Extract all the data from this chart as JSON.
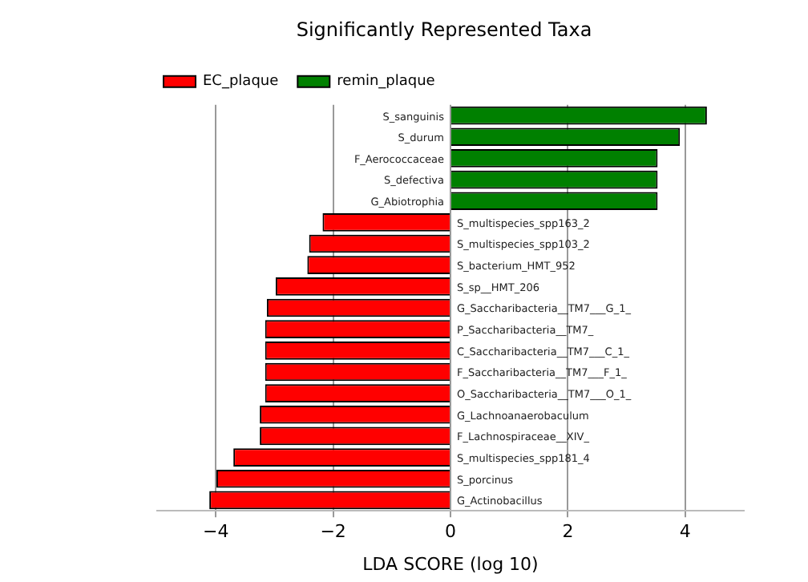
{
  "chart_data": {
    "type": "bar",
    "title": "Significantly Represented Taxa",
    "xlabel": "LDA SCORE (log 10)",
    "orientation": "horizontal",
    "stacked": true,
    "categories": [
      "S_sanguinis",
      "S_durum",
      "F_Aerococcaceae",
      "S_defectiva",
      "G_Abiotrophia",
      "S_multispecies_spp163_2",
      "S_multispecies_spp103_2",
      "S_bacterium_HMT_952",
      "S_sp__HMT_206",
      "G_Saccharibacteria__TM7___G_1_",
      "P_Saccharibacteria__TM7_",
      "C_Saccharibacteria__TM7___C_1_",
      "F_Saccharibacteria__TM7___F_1_",
      "O_Saccharibacteria__TM7___O_1_",
      "G_Lachnoanaerobaculum",
      "F_Lachnospiraceae__XIV_",
      "S_multispecies_spp181_4",
      "S_porcinus",
      "G_Actinobacillus"
    ],
    "series": [
      {
        "name": "EC_plaque",
        "color": "#ff0000",
        "values": [
          null,
          null,
          null,
          null,
          null,
          -2.18,
          -2.41,
          -2.44,
          -2.98,
          -3.13,
          -3.16,
          -3.16,
          -3.16,
          -3.16,
          -3.25,
          -3.25,
          -3.7,
          -3.99,
          -4.11
        ]
      },
      {
        "name": "remin_plaque",
        "color": "#008000",
        "values": [
          4.37,
          3.91,
          3.53,
          3.53,
          3.53,
          null,
          null,
          null,
          null,
          null,
          null,
          null,
          null,
          null,
          null,
          null,
          null,
          null,
          null
        ]
      }
    ],
    "xlim": [
      -5,
      5
    ],
    "xticks": [
      -4,
      -2,
      0,
      2,
      4
    ],
    "grid": "x",
    "legend": "top left"
  }
}
